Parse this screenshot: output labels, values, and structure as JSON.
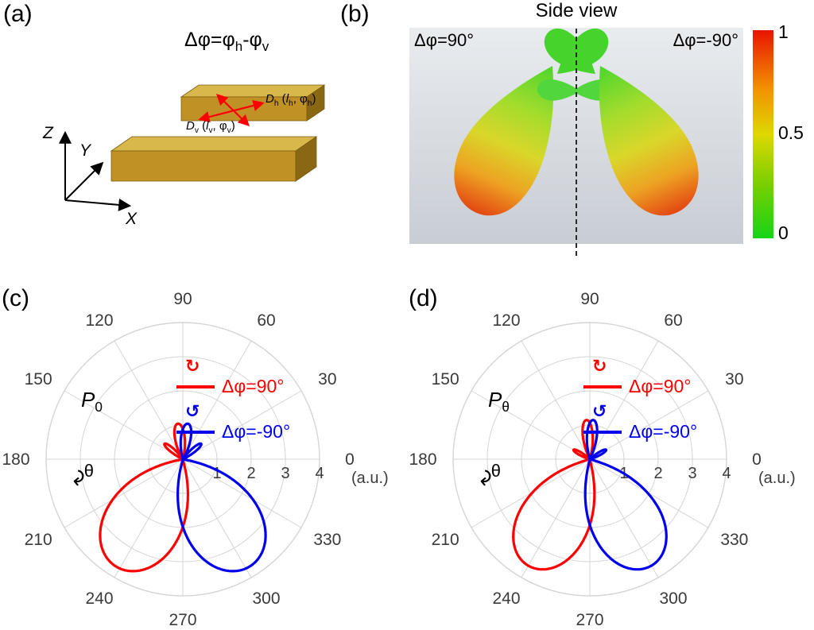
{
  "theme": {
    "red": "#ff0000",
    "blue": "#0000ee",
    "grid": "#d5d5d5",
    "tick": "#3a3a3a",
    "bg-top": "#e9ecef",
    "bg-bot": "#c8cdd4",
    "cb1": "#e81400",
    "cb2": "#f29100",
    "cb3": "#ded800",
    "cb4": "#79cf00",
    "cb5": "#17d417",
    "gold-front": "#c09125",
    "gold-top": "#d8b84a",
    "gold-side": "#8a6712",
    "lobe-green": "#46d42c"
  },
  "panels": {
    "a": {
      "label": "(a)",
      "title": [
        {
          "t": "Δφ=φ"
        },
        {
          "t": "h",
          "s": true
        },
        {
          "t": "-φ"
        },
        {
          "t": "v",
          "s": true
        }
      ],
      "dh": [
        {
          "t": "D",
          "i": true
        },
        {
          "t": "h",
          "s": true
        },
        {
          "t": " ("
        },
        {
          "t": "l",
          "i": true
        },
        {
          "t": "h",
          "s": true
        },
        {
          "t": ", φ"
        },
        {
          "t": "h",
          "s": true
        },
        {
          "t": ")"
        }
      ],
      "dv": [
        {
          "t": "D",
          "i": true
        },
        {
          "t": "v",
          "s": true
        },
        {
          "t": " ("
        },
        {
          "t": "l",
          "i": true
        },
        {
          "t": "v",
          "s": true
        },
        {
          "t": ", φ"
        },
        {
          "t": "v",
          "s": true
        },
        {
          "t": ")"
        }
      ],
      "axes": {
        "x": "X",
        "y": "Y",
        "z": "Z"
      }
    },
    "b": {
      "label": "(b)",
      "title": "Side view",
      "left_caption": "Δφ=90°",
      "right_caption": "Δφ=-90°",
      "colorbar": {
        "max": "1",
        "mid": "0.5",
        "min": "0"
      }
    },
    "c": {
      "label": "(c)"
    },
    "d": {
      "label": "(d)"
    }
  },
  "chart_data": [
    {
      "id": "c",
      "type": "polar",
      "title": [
        {
          "t": "P",
          "i": true
        },
        {
          "t": "0",
          "s": true
        }
      ],
      "theta_label": "θ",
      "theta_arrow": "↷",
      "angle_ticks": [
        0,
        30,
        60,
        90,
        120,
        150,
        180,
        210,
        240,
        270,
        300,
        330
      ],
      "radial_ticks": [
        "1",
        "2",
        "3",
        "4"
      ],
      "radial_unit": "(a.u.)",
      "rmax": 4,
      "grid_color": "#d5d5d5",
      "legend": [
        {
          "label": "Δφ=90°",
          "color": "#ff0000",
          "arrow": "↻"
        },
        {
          "label": "Δφ=-90°",
          "color": "#0000ee",
          "arrow": "↺"
        }
      ],
      "series": [
        {
          "name": "Δφ=90°",
          "color": "#ff0000",
          "lobes": [
            {
              "center": 238,
              "amp": 3.7,
              "halfwidth": 47,
              "p": 0.85
            },
            {
              "center": 98,
              "amp": 1.05,
              "halfwidth": 24,
              "p": 1.2
            },
            {
              "center": 140,
              "amp": 0.7,
              "halfwidth": 15,
              "p": 1.2
            }
          ]
        },
        {
          "name": "Δφ=-90°",
          "color": "#0000ee",
          "lobes": [
            {
              "center": 302,
              "amp": 3.7,
              "halfwidth": 47,
              "p": 0.85
            },
            {
              "center": 82,
              "amp": 1.05,
              "halfwidth": 24,
              "p": 1.2
            },
            {
              "center": 40,
              "amp": 0.7,
              "halfwidth": 15,
              "p": 1.2
            }
          ]
        }
      ]
    },
    {
      "id": "d",
      "type": "polar",
      "title": [
        {
          "t": "P",
          "i": true
        },
        {
          "t": "θ",
          "s": true
        }
      ],
      "theta_label": "θ",
      "theta_arrow": "↷",
      "angle_ticks": [
        0,
        30,
        60,
        90,
        120,
        150,
        180,
        210,
        240,
        270,
        300,
        330
      ],
      "radial_ticks": [
        "1",
        "2",
        "3",
        "4"
      ],
      "radial_unit": "(a.u.)",
      "rmax": 4,
      "grid_color": "#d5d5d5",
      "legend": [
        {
          "label": "Δφ=90°",
          "color": "#ff0000",
          "arrow": "↻"
        },
        {
          "label": "Δφ=-90°",
          "color": "#0000ee",
          "arrow": "↺"
        }
      ],
      "series": [
        {
          "name": "Δφ=90°",
          "color": "#ff0000",
          "lobes": [
            {
              "center": 240,
              "amp": 3.6,
              "halfwidth": 44,
              "p": 0.85
            },
            {
              "center": 95,
              "amp": 1.15,
              "halfwidth": 22,
              "p": 1.2
            },
            {
              "center": 150,
              "amp": 0.55,
              "halfwidth": 14,
              "p": 1.2
            }
          ]
        },
        {
          "name": "Δφ=-90°",
          "color": "#0000ee",
          "lobes": [
            {
              "center": 300,
              "amp": 3.6,
              "halfwidth": 44,
              "p": 0.85
            },
            {
              "center": 85,
              "amp": 1.15,
              "halfwidth": 22,
              "p": 1.2
            },
            {
              "center": 30,
              "amp": 0.55,
              "halfwidth": 14,
              "p": 1.2
            }
          ]
        }
      ]
    }
  ]
}
